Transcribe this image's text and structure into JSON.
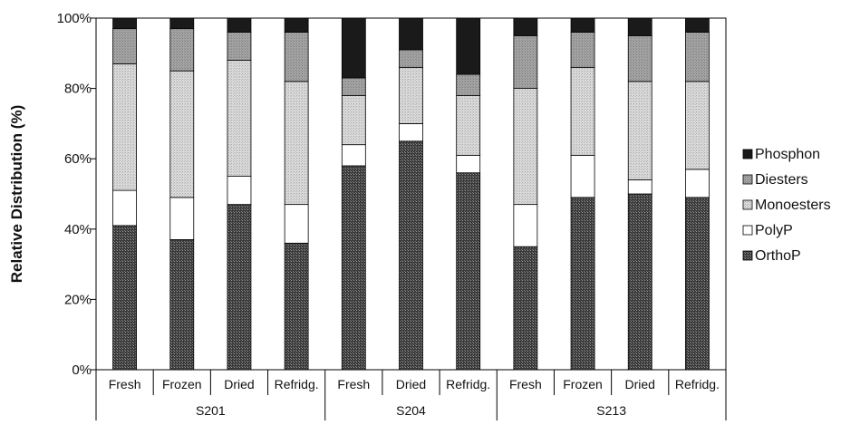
{
  "chart_data": {
    "type": "bar",
    "stacked": true,
    "title": "",
    "xlabel": "",
    "ylabel": "Relative Distribution (%)",
    "ylim": [
      0,
      100
    ],
    "yticks": [
      "0%",
      "20%",
      "40%",
      "60%",
      "80%",
      "100%"
    ],
    "grid": false,
    "legend_position": "right",
    "groups": [
      {
        "name": "S201",
        "categories": [
          "Fresh",
          "Frozen",
          "Dried",
          "Refridg."
        ]
      },
      {
        "name": "S204",
        "categories": [
          "Fresh",
          "Dried",
          "Refridg."
        ]
      },
      {
        "name": "S213",
        "categories": [
          "Fresh",
          "Frozen",
          "Dried",
          "Refridg."
        ]
      }
    ],
    "categories": [
      "Fresh",
      "Frozen",
      "Dried",
      "Refridg.",
      "Fresh",
      "Dried",
      "Refridg.",
      "Fresh",
      "Frozen",
      "Dried",
      "Refridg."
    ],
    "series": [
      {
        "name": "OrthoP",
        "color": "#555555",
        "values": [
          41,
          37,
          47,
          36,
          58,
          65,
          56,
          35,
          49,
          50,
          49
        ]
      },
      {
        "name": "PolyP",
        "color": "#ffffff",
        "values": [
          10,
          12,
          8,
          11,
          6,
          5,
          5,
          12,
          12,
          4,
          8
        ]
      },
      {
        "name": "Monoesters",
        "color": "#cccccc",
        "values": [
          36,
          36,
          33,
          35,
          14,
          16,
          17,
          33,
          25,
          28,
          25
        ]
      },
      {
        "name": "Diesters",
        "color": "#999999",
        "values": [
          10,
          12,
          8,
          14,
          5,
          5,
          6,
          15,
          10,
          13,
          14
        ]
      },
      {
        "name": "Phosphon",
        "color": "#1a1a1a",
        "values": [
          3,
          3,
          4,
          4,
          17,
          9,
          16,
          5,
          4,
          5,
          4
        ]
      }
    ],
    "legend": [
      "Phosphon",
      "Diesters",
      "Monoesters",
      "PolyP",
      "OrthoP"
    ]
  }
}
